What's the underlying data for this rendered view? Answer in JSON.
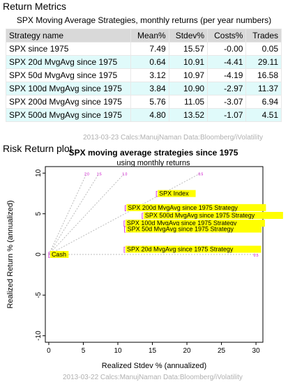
{
  "metrics_title": "Return Metrics",
  "table_caption": "SPX Moving Average Strategies, monthly returns (per year numbers)",
  "columns": [
    "Strategy name",
    "Mean%",
    "Stdev%",
    "Costs%",
    "Trades"
  ],
  "rows": [
    [
      "SPX since 1975",
      "7.49",
      "15.57",
      "-0.00",
      "0.05"
    ],
    [
      "SPX 20d MvgAvg since 1975",
      "0.64",
      "10.91",
      "-4.41",
      "29.11"
    ],
    [
      "SPX 50d MvgAvg since 1975",
      "3.12",
      "10.97",
      "-4.19",
      "16.58"
    ],
    [
      "SPX 100d MvgAvg since 1975",
      "3.84",
      "10.90",
      "-2.97",
      "11.37"
    ],
    [
      "SPX 200d MvgAvg since 1975",
      "5.76",
      "11.05",
      "-3.07",
      "6.94"
    ],
    [
      "SPX 500d MvgAvg since 1975",
      "4.80",
      "13.52",
      "-1.07",
      "4.51"
    ]
  ],
  "table_footnote": "2013-03-23  Calcs:ManujNaman  Data:Bloomberg/iVolatility",
  "plot_title": "Risk Return plot",
  "plot_footnote": "2013-03-22  Calcs:ManujNaman  Data:Bloomberg/iVolatility",
  "chart_data": {
    "type": "scatter",
    "title": "SPX moving average strategies since 1975",
    "subtitle": "using monthly returns",
    "xlabel": "Realized Stdev % (annualized)",
    "ylabel": "Realized Return % (annualized)",
    "xlim": [
      -0.5,
      31
    ],
    "ylim": [
      -10.8,
      10.8
    ],
    "xticks": [
      0,
      5,
      10,
      15,
      20,
      25,
      30
    ],
    "yticks": [
      -10,
      -5,
      0,
      5,
      10
    ],
    "highlight_color": "#ffff00",
    "marker_color": "#cc00cc",
    "guide_color": "#bbbbbb",
    "points": [
      {
        "label": "Cash",
        "x": 0,
        "y": 0
      },
      {
        "label": "SPX Index",
        "x": 15.57,
        "y": 7.49
      },
      {
        "label": "SPX 200d MvgAvg since 1975 Strategy",
        "x": 11.05,
        "y": 5.76
      },
      {
        "label": "SPX 500d MvgAvg since 1975 Strategy",
        "x": 13.52,
        "y": 4.8
      },
      {
        "label": "SPX 100d MvgAvg since 1975 Strategy",
        "x": 10.9,
        "y": 3.84
      },
      {
        "label": "SPX 50d MvgAvg since 1975 Strategy",
        "x": 10.97,
        "y": 3.12
      },
      {
        "label": "SPX 20d MvgAvg since 1975 Strategy",
        "x": 10.91,
        "y": 0.64
      }
    ],
    "guide_markers": [
      {
        "label": "0.5",
        "x": 30,
        "y": 0
      },
      {
        "label": "2.0",
        "x": 5.5,
        "y": 10
      },
      {
        "label": "1.5",
        "x": 7.3,
        "y": 10
      },
      {
        "label": "1.0",
        "x": 11,
        "y": 10
      },
      {
        "label": "0.5",
        "x": 22,
        "y": 10
      }
    ]
  }
}
